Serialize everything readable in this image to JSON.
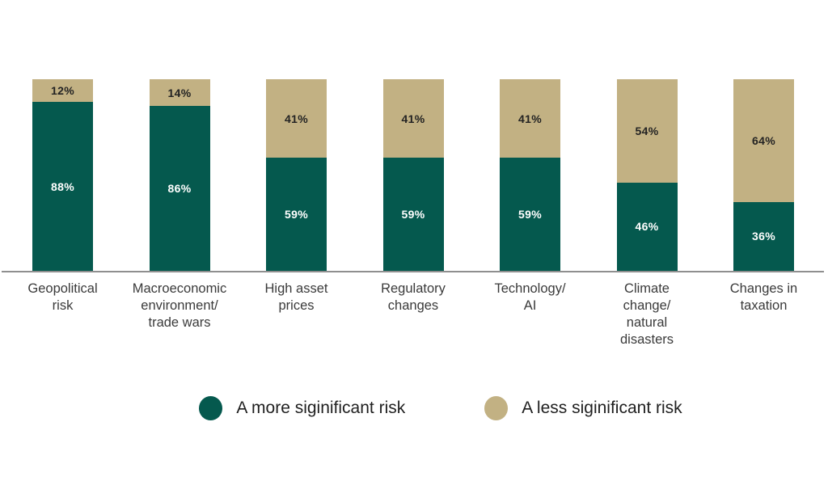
{
  "chart_data": {
    "type": "bar",
    "stacked": true,
    "unit": "%",
    "categories": [
      [
        "Geopolitical",
        "risk"
      ],
      [
        "Macroeconomic",
        "environment/",
        "trade wars"
      ],
      [
        "High asset",
        "prices"
      ],
      [
        "Regulatory",
        "changes"
      ],
      [
        "Technology/",
        "AI"
      ],
      [
        "Climate",
        "change/",
        "natural",
        "disasters"
      ],
      [
        "Changes in",
        "taxation"
      ]
    ],
    "series": [
      {
        "name": "A more siginificant risk",
        "color": "#05594E",
        "label_color": "#FFFFFF",
        "values": [
          88,
          86,
          59,
          59,
          59,
          46,
          36
        ]
      },
      {
        "name": "A less siginificant risk",
        "color": "#C2B183",
        "label_color": "#232323",
        "values": [
          12,
          14,
          41,
          41,
          41,
          54,
          64
        ]
      }
    ],
    "value_suffix": "%",
    "ylim": [
      0,
      100
    ],
    "grid": false,
    "legend_position": "bottom",
    "axis_line_color": "#8F8F8F",
    "background": "#FFFFFF"
  }
}
